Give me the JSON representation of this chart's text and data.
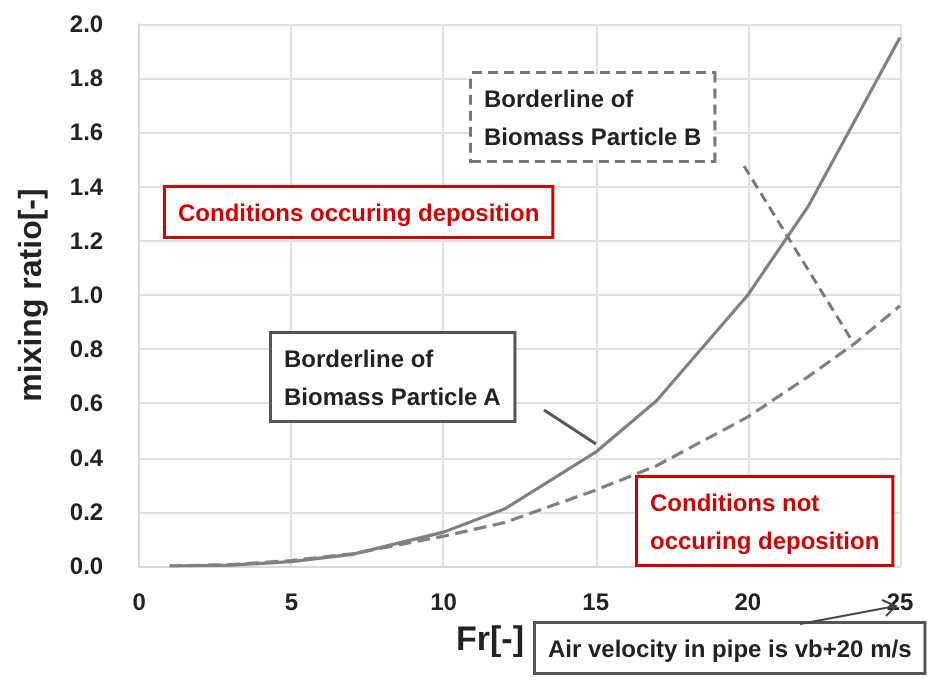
{
  "chart_data": {
    "type": "line",
    "xlabel": "Fr[-]",
    "ylabel": "mixing ratio[-]",
    "xlim": [
      0,
      25
    ],
    "xticks": [
      0,
      5,
      10,
      15,
      20,
      25
    ],
    "ylim": [
      0,
      2
    ],
    "yticks": [
      {
        "value": 0,
        "label": "0.0"
      },
      {
        "value": 0.2,
        "label": "0.2"
      },
      {
        "value": 0.4,
        "label": "0.4"
      },
      {
        "value": 0.6,
        "label": "0.6"
      },
      {
        "value": 0.8,
        "label": "0.8"
      },
      {
        "value": 1,
        "label": "1.0"
      },
      {
        "value": 1.2,
        "label": "1.2"
      },
      {
        "value": 1.4,
        "label": "1.4"
      },
      {
        "value": 1.6,
        "label": "1.6"
      },
      {
        "value": 1.8,
        "label": "1.8"
      },
      {
        "value": 2,
        "label": "2.0"
      }
    ],
    "grid": true,
    "marker": "none",
    "series": [
      {
        "color": "#808080",
        "line_style": "solid",
        "x": [
          1,
          3,
          5,
          7,
          10,
          12,
          15,
          17,
          20,
          22,
          25
        ],
        "values": [
          0,
          0.003,
          0.016,
          0.043,
          0.125,
          0.21,
          0.42,
          0.61,
          1.0,
          1.33,
          1.95
        ]
      },
      {
        "color": "#808080",
        "line_style": "dashed",
        "x": [
          1,
          3,
          5,
          7,
          10,
          12,
          15,
          17,
          20,
          22,
          23.5,
          25
        ],
        "values": [
          0,
          0.005,
          0.02,
          0.045,
          0.11,
          0.16,
          0.28,
          0.37,
          0.55,
          0.7,
          0.82,
          0.96
        ]
      }
    ],
    "annotations": [
      "Conditions occuring deposition",
      "Borderline of\nBiomass Particle A",
      "Borderline of\nBiomass Particle B",
      "Conditions not\noccuring deposition",
      "Air velocity in pipe is vb+20 m/s"
    ]
  }
}
